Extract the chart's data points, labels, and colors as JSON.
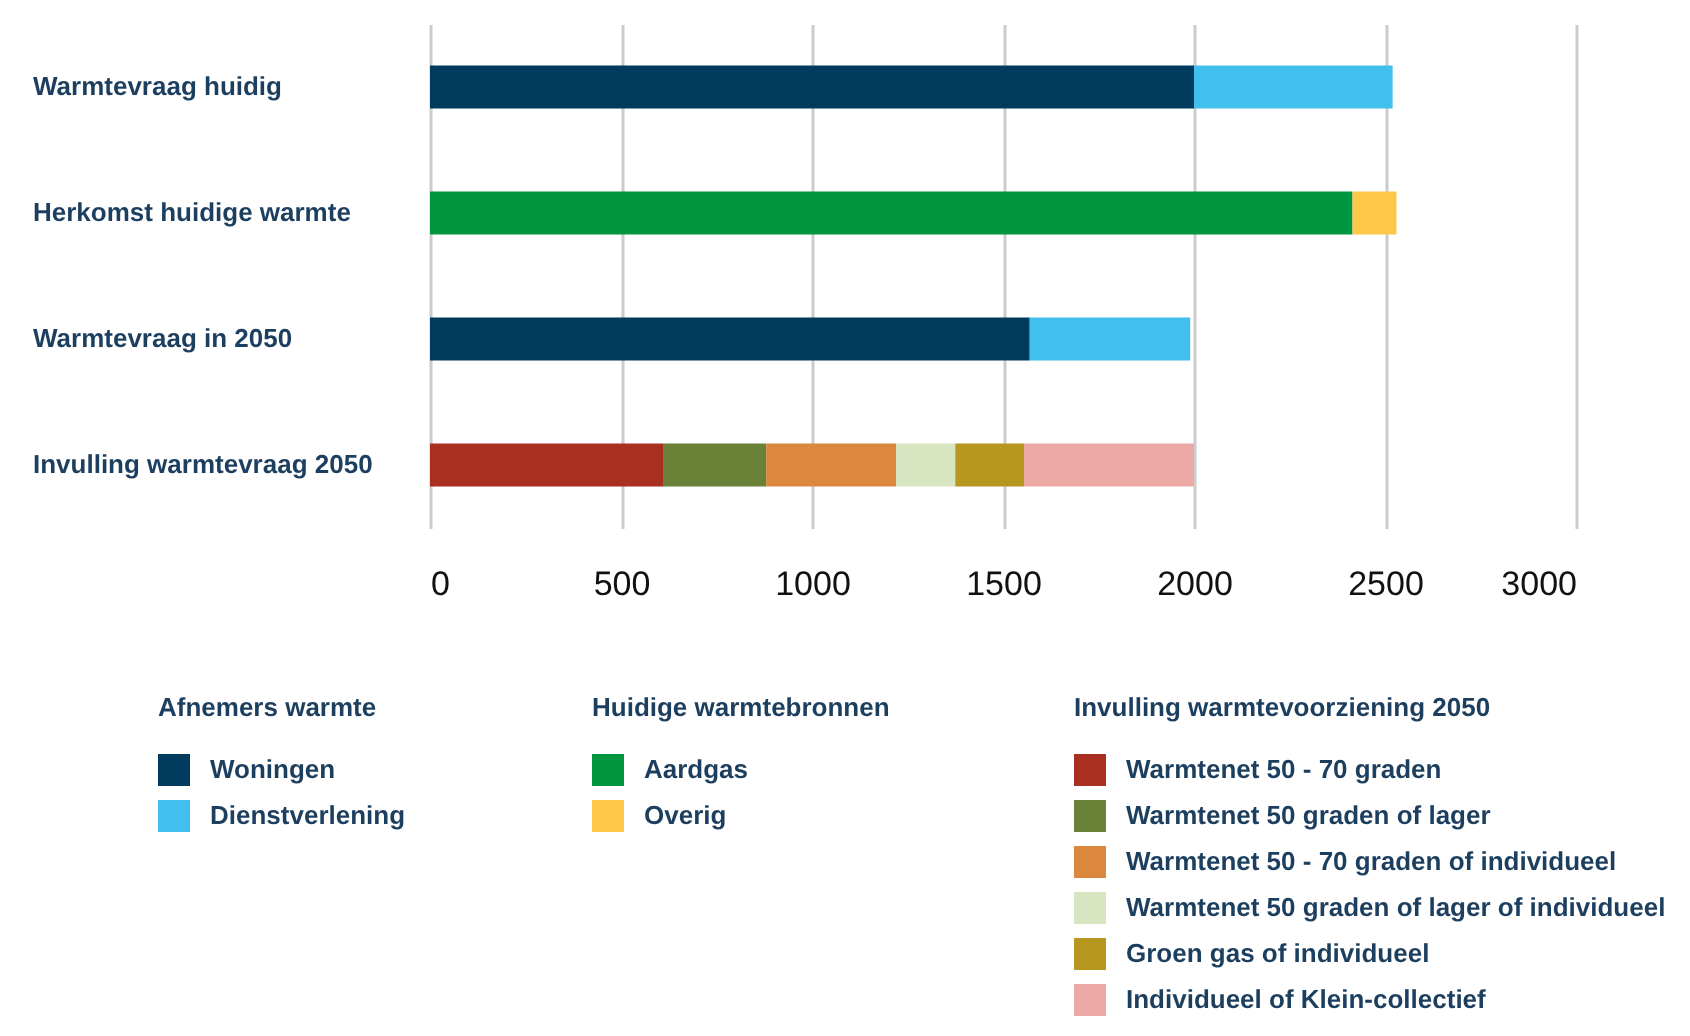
{
  "chart_data": {
    "type": "bar",
    "orientation": "horizontal",
    "stacked": true,
    "categories": [
      "Warmtevraag huidig",
      "Herkomst huidige warmte",
      "Warmtevraag in 2050",
      "Invulling warmtevraag 2050"
    ],
    "series": [
      {
        "name": "Woningen",
        "color": "#003a5d",
        "values": [
          2000,
          null,
          1570,
          null
        ]
      },
      {
        "name": "Dienstverlening",
        "color": "#41bfee",
        "values": [
          520,
          null,
          420,
          null
        ]
      },
      {
        "name": "Aardgas",
        "color": "#009640",
        "values": [
          null,
          2415,
          null,
          null
        ]
      },
      {
        "name": "Overig",
        "color": "#fdc848",
        "values": [
          null,
          115,
          null,
          null
        ]
      },
      {
        "name": "Warmtenet 50 - 70 graden",
        "color": "#a93021",
        "values": [
          null,
          null,
          null,
          610
        ]
      },
      {
        "name": "Warmtenet 50 graden of lager",
        "color": "#6a8238",
        "values": [
          null,
          null,
          null,
          270
        ]
      },
      {
        "name": "Warmtenet 50 - 70 graden of individueel",
        "color": "#db873d",
        "values": [
          null,
          null,
          null,
          340
        ]
      },
      {
        "name": "Warmtenet 50 graden of lager of individueel",
        "color": "#d7e5c1",
        "values": [
          null,
          null,
          null,
          155
        ]
      },
      {
        "name": "Groen gas of individueel",
        "color": "#b89720",
        "values": [
          null,
          null,
          null,
          180
        ]
      },
      {
        "name": "Individueel of Klein-collectief",
        "color": "#eda9a6",
        "values": [
          null,
          null,
          null,
          445
        ]
      }
    ],
    "legend_title": [
      "Afnemers warmte",
      "Huidige warmtebronnen",
      "Invulling warmtevoorziening 2050"
    ],
    "xlim": [
      0,
      3000
    ],
    "xticks": [
      0,
      500,
      1000,
      1500,
      2000,
      2500,
      3000
    ],
    "grid": "x",
    "legend": "bottom"
  }
}
